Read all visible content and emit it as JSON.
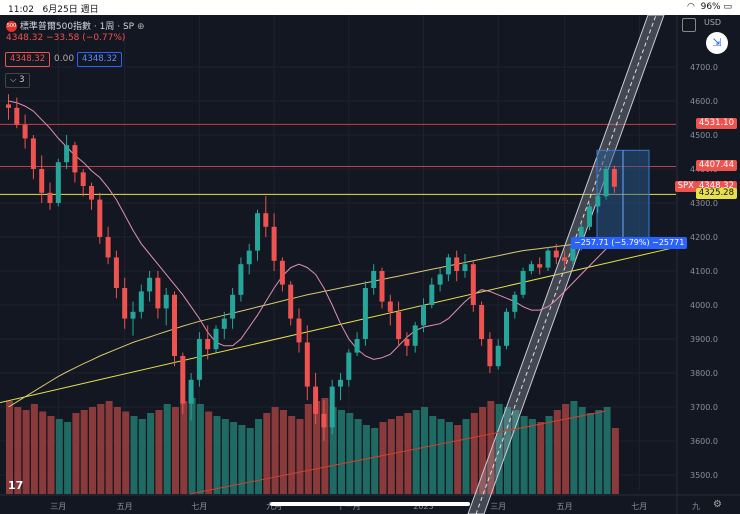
{
  "status_bar": {
    "time": "11:02",
    "date": "6月25日 週日",
    "battery": "96%"
  },
  "header": {
    "title": "標準普爾500指數 · 1周 · SP",
    "logo_text": "500",
    "price": "4348.32",
    "change": "−33.58 (−0.77%)",
    "box_left": "4348.32",
    "box_mid": "0.00",
    "box_right": "4348.32",
    "indicator_count": "3"
  },
  "currency": "USD",
  "colors": {
    "up": "#26a69a",
    "down": "#ef5350",
    "bg": "#131722",
    "grid": "#1e2230",
    "ma_long": "#d8c870",
    "ma_short": "#e090b0",
    "trend": "#e6e04a",
    "band": "#9aa0ad",
    "measure": "#2a5a8c",
    "hline": "#c0404a",
    "yline": "#e6e04a"
  },
  "chart_data": {
    "type": "candlestick",
    "yaxis": {
      "ticks": [
        3500,
        3600,
        3700,
        3800,
        3900,
        4000,
        4100,
        4200,
        4300,
        4400,
        4500,
        4600,
        4700
      ]
    },
    "xaxis": {
      "labels": [
        "三月",
        "五月",
        "七月",
        "九月",
        "十一月",
        "2023",
        "三月",
        "五月",
        "七月",
        "九"
      ]
    },
    "price_labels": [
      {
        "value": 4531.1,
        "text": "4531.10",
        "color": "#ef5350"
      },
      {
        "value": 4407.44,
        "text": "4407.44",
        "color": "#ef5350"
      },
      {
        "value": 4348.32,
        "text": "4348.32",
        "color": "#ef5350",
        "symbol": "SPX"
      },
      {
        "value": 4325.28,
        "text": "4325.28",
        "color": "#e6e04a"
      }
    ],
    "measure_label": "−257.71 (−5.79%) −25771",
    "candles": [
      [
        4590,
        4620,
        4545,
        4580
      ],
      [
        4580,
        4610,
        4520,
        4530
      ],
      [
        4530,
        4560,
        4460,
        4490
      ],
      [
        4490,
        4500,
        4370,
        4400
      ],
      [
        4400,
        4440,
        4300,
        4330
      ],
      [
        4330,
        4360,
        4280,
        4300
      ],
      [
        4300,
        4430,
        4290,
        4420
      ],
      [
        4420,
        4500,
        4400,
        4470
      ],
      [
        4470,
        4480,
        4360,
        4390
      ],
      [
        4390,
        4400,
        4320,
        4350
      ],
      [
        4350,
        4360,
        4280,
        4310
      ],
      [
        4310,
        4330,
        4180,
        4200
      ],
      [
        4200,
        4230,
        4120,
        4140
      ],
      [
        4140,
        4160,
        4020,
        4050
      ],
      [
        4050,
        4080,
        3930,
        3960
      ],
      [
        3960,
        4010,
        3910,
        3980
      ],
      [
        3980,
        4060,
        3960,
        4040
      ],
      [
        4040,
        4100,
        4010,
        4080
      ],
      [
        4080,
        4100,
        3960,
        3990
      ],
      [
        3990,
        4050,
        3940,
        4030
      ],
      [
        4030,
        4040,
        3820,
        3850
      ],
      [
        3850,
        3860,
        3680,
        3710
      ],
      [
        3710,
        3800,
        3660,
        3780
      ],
      [
        3780,
        3920,
        3760,
        3900
      ],
      [
        3900,
        3940,
        3840,
        3870
      ],
      [
        3870,
        3940,
        3860,
        3930
      ],
      [
        3930,
        3980,
        3900,
        3960
      ],
      [
        3960,
        4050,
        3930,
        4030
      ],
      [
        4030,
        4140,
        4010,
        4120
      ],
      [
        4120,
        4180,
        4090,
        4160
      ],
      [
        4160,
        4280,
        4130,
        4270
      ],
      [
        4270,
        4320,
        4200,
        4230
      ],
      [
        4230,
        4270,
        4100,
        4130
      ],
      [
        4130,
        4140,
        4040,
        4060
      ],
      [
        4060,
        4070,
        3940,
        3960
      ],
      [
        3960,
        3990,
        3860,
        3890
      ],
      [
        3890,
        3940,
        3720,
        3760
      ],
      [
        3760,
        3800,
        3650,
        3680
      ],
      [
        3680,
        3720,
        3600,
        3640
      ],
      [
        3640,
        3780,
        3620,
        3760
      ],
      [
        3760,
        3800,
        3720,
        3780
      ],
      [
        3780,
        3870,
        3760,
        3860
      ],
      [
        3860,
        3920,
        3850,
        3900
      ],
      [
        3900,
        4070,
        3880,
        4050
      ],
      [
        4050,
        4120,
        4030,
        4100
      ],
      [
        4100,
        4110,
        3990,
        4010
      ],
      [
        4010,
        4030,
        3940,
        3980
      ],
      [
        3980,
        4010,
        3880,
        3900
      ],
      [
        3900,
        3920,
        3850,
        3880
      ],
      [
        3880,
        3950,
        3860,
        3940
      ],
      [
        3940,
        4020,
        3920,
        4000
      ],
      [
        4000,
        4080,
        3990,
        4060
      ],
      [
        4060,
        4110,
        4040,
        4090
      ],
      [
        4090,
        4150,
        4070,
        4140
      ],
      [
        4140,
        4160,
        4070,
        4100
      ],
      [
        4100,
        4150,
        4080,
        4120
      ],
      [
        4120,
        4130,
        3980,
        4000
      ],
      [
        4000,
        4010,
        3880,
        3900
      ],
      [
        3900,
        3920,
        3800,
        3820
      ],
      [
        3820,
        3900,
        3810,
        3880
      ],
      [
        3880,
        3990,
        3870,
        3980
      ],
      [
        3980,
        4040,
        3960,
        4030
      ],
      [
        4030,
        4110,
        4020,
        4100
      ],
      [
        4100,
        4130,
        4090,
        4120
      ],
      [
        4120,
        4140,
        4090,
        4110
      ],
      [
        4110,
        4170,
        4100,
        4160
      ],
      [
        4160,
        4180,
        4120,
        4140
      ],
      [
        4140,
        4160,
        4110,
        4130
      ],
      [
        4130,
        4180,
        4120,
        4170
      ],
      [
        4170,
        4240,
        4160,
        4230
      ],
      [
        4230,
        4300,
        4220,
        4290
      ],
      [
        4290,
        4330,
        4270,
        4320
      ],
      [
        4320,
        4410,
        4310,
        4400
      ],
      [
        4400,
        4410,
        4330,
        4348
      ]
    ],
    "volume": [
      62,
      58,
      56,
      60,
      55,
      52,
      50,
      48,
      54,
      56,
      58,
      60,
      62,
      58,
      55,
      52,
      50,
      54,
      56,
      60,
      58,
      62,
      64,
      60,
      55,
      52,
      50,
      48,
      46,
      44,
      50,
      54,
      58,
      56,
      52,
      50,
      60,
      62,
      64,
      58,
      56,
      54,
      50,
      46,
      44,
      48,
      50,
      52,
      54,
      56,
      58,
      52,
      50,
      48,
      46,
      50,
      54,
      58,
      62,
      60,
      58,
      56,
      52,
      50,
      48,
      52,
      56,
      60,
      62,
      58,
      54,
      56,
      58,
      44
    ],
    "ma_short": [
      4600,
      4595,
      4585,
      4570,
      4545,
      4520,
      4490,
      4465,
      4440,
      4420,
      4395,
      4375,
      4345,
      4310,
      4265,
      4220,
      4180,
      4150,
      4120,
      4090,
      4060,
      4030,
      3995,
      3960,
      3920,
      3890,
      3880,
      3880,
      3900,
      3935,
      3970,
      4010,
      4050,
      4085,
      4110,
      4120,
      4110,
      4090,
      4050,
      4000,
      3945,
      3900,
      3870,
      3850,
      3840,
      3845,
      3855,
      3880,
      3905,
      3925,
      3935,
      3940,
      3945,
      3960,
      3985,
      4010,
      4030,
      4045,
      4040,
      4030,
      4020,
      4010,
      3995,
      3985,
      3985,
      3995,
      4015,
      4040,
      4065,
      4090,
      4115,
      4140,
      4165,
      4190
    ],
    "ma_long": [
      3700,
      3715,
      3730,
      3745,
      3760,
      3775,
      3790,
      3803,
      3815,
      3827,
      3838,
      3850,
      3860,
      3870,
      3880,
      3890,
      3898,
      3906,
      3914,
      3922,
      3930,
      3938,
      3945,
      3952,
      3958,
      3964,
      3970,
      3976,
      3982,
      3988,
      3994,
      4000,
      4006,
      4012,
      4018,
      4024,
      4030,
      4035,
      4040,
      4045,
      4050,
      4055,
      4060,
      4065,
      4070,
      4075,
      4080,
      4085,
      4090,
      4095,
      4100,
      4105,
      4110,
      4115,
      4120,
      4125,
      4130,
      4135,
      4140,
      4145,
      4150,
      4155,
      4160,
      4163,
      4166,
      4169,
      4172,
      4175,
      4178,
      4181,
      4184,
      4187,
      4190,
      4193
    ]
  }
}
